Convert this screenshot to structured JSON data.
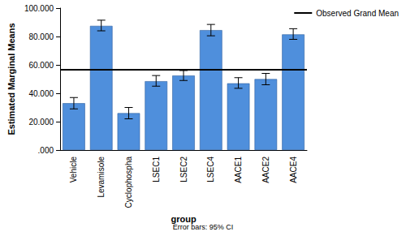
{
  "chart_data": {
    "type": "bar",
    "x_label": "group",
    "y_label": "Estimated Marginal Means",
    "categories": [
      "Vehicle",
      "Levamisole",
      "Cyclophospha",
      "LSEC1",
      "LSEC2",
      "LSEC4",
      "AACE1",
      "AACE2",
      "AACE4"
    ],
    "values": [
      33,
      87.5,
      26,
      48.5,
      52.5,
      84.5,
      47,
      50,
      81.5
    ],
    "error_low": [
      29,
      84,
      22,
      45,
      49,
      80.5,
      43.5,
      46,
      78
    ],
    "error_high": [
      37,
      91.5,
      30,
      52.5,
      56,
      88.5,
      51,
      54,
      85.5
    ],
    "color": "#4f8fdc",
    "reference_line": {
      "name": "Observed Grand Mean",
      "value": 56.6
    },
    "footnote": "Error bars: 95% CI",
    "ylim": [
      0,
      100
    ],
    "yticks": [
      {
        "value": 0,
        "label": ".000"
      },
      {
        "value": 20,
        "label": "20.000"
      },
      {
        "value": 40,
        "label": "40.000"
      },
      {
        "value": 60,
        "label": "60.000"
      },
      {
        "value": 80,
        "label": "80.000"
      },
      {
        "value": 100,
        "label": "100.000"
      }
    ],
    "grid": false,
    "legend": "top-right"
  }
}
